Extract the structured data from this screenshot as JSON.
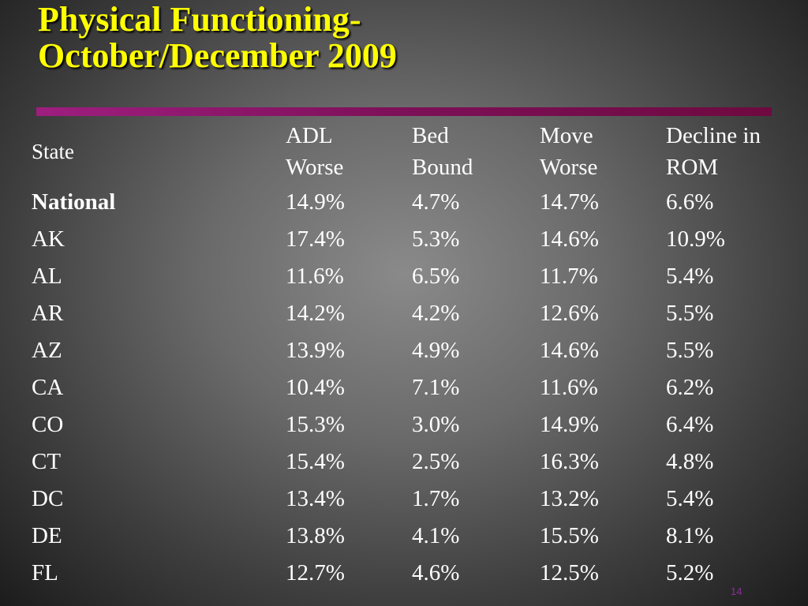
{
  "title": {
    "line1": "Physical Functioning-",
    "line2": "October/December 2009"
  },
  "table": {
    "headers": {
      "state": "State",
      "adl": [
        "ADL",
        "Worse"
      ],
      "bed": [
        "Bed",
        "Bound"
      ],
      "move": [
        "Move",
        "Worse"
      ],
      "rom": [
        "Decline in",
        "ROM"
      ]
    },
    "rows": [
      {
        "state": "National",
        "adl": "14.9%",
        "bed": "4.7%",
        "move": "14.7%",
        "rom": "6.6%"
      },
      {
        "state": "AK",
        "adl": "17.4%",
        "bed": "5.3%",
        "move": "14.6%",
        "rom": "10.9%"
      },
      {
        "state": "AL",
        "adl": "11.6%",
        "bed": "6.5%",
        "move": "11.7%",
        "rom": "5.4%"
      },
      {
        "state": "AR",
        "adl": "14.2%",
        "bed": "4.2%",
        "move": "12.6%",
        "rom": "5.5%"
      },
      {
        "state": "AZ",
        "adl": "13.9%",
        "bed": "4.9%",
        "move": "14.6%",
        "rom": "5.5%"
      },
      {
        "state": "CA",
        "adl": "10.4%",
        "bed": "7.1%",
        "move": "11.6%",
        "rom": "6.2%"
      },
      {
        "state": "CO",
        "adl": "15.3%",
        "bed": "3.0%",
        "move": "14.9%",
        "rom": "6.4%"
      },
      {
        "state": "CT",
        "adl": "15.4%",
        "bed": "2.5%",
        "move": "16.3%",
        "rom": "4.8%"
      },
      {
        "state": "DC",
        "adl": "13.4%",
        "bed": "1.7%",
        "move": "13.2%",
        "rom": "5.4%"
      },
      {
        "state": "DE",
        "adl": "13.8%",
        "bed": "4.1%",
        "move": "15.5%",
        "rom": "8.1%"
      },
      {
        "state": "FL",
        "adl": "12.7%",
        "bed": "4.6%",
        "move": "12.5%",
        "rom": "5.2%"
      }
    ]
  },
  "page_number": "14",
  "colors": {
    "title": "#ffff00",
    "rule": "#8a1468",
    "text": "#ffffff",
    "page_number": "#8c2c9c"
  }
}
